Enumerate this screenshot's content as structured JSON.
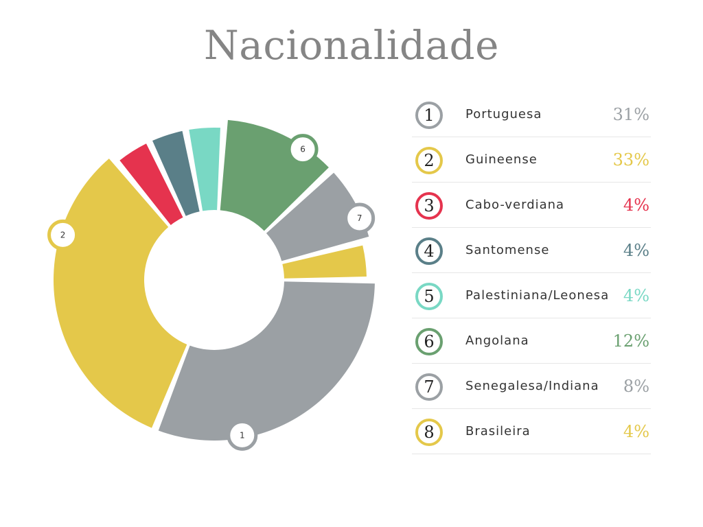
{
  "title": "Nacionalidade",
  "chart_data": {
    "type": "pie",
    "title": "Nacionalidade",
    "categories": [
      "Portuguesa",
      "Guineense",
      "Cabo-verdiana",
      "Santomense",
      "Palestiniana/Leonesa",
      "Angolana",
      "Senegalesa/Indiana",
      "Brasileira"
    ],
    "values": [
      31,
      33,
      4,
      4,
      4,
      12,
      8,
      4
    ],
    "value_labels": [
      "31%",
      "33%",
      "4%",
      "4%",
      "4%",
      "12%",
      "8%",
      "4%"
    ],
    "numbers": [
      "1",
      "2",
      "3",
      "4",
      "5",
      "6",
      "7",
      "8"
    ],
    "colors": [
      "#9ba0a4",
      "#e4c84a",
      "#e5334e",
      "#5a7f88",
      "#79d8c4",
      "#6aa070",
      "#9ba0a4",
      "#e4c84a"
    ],
    "donut": true,
    "marked_slices": [
      "1",
      "2",
      "6",
      "7"
    ],
    "legend_placement": "right"
  }
}
